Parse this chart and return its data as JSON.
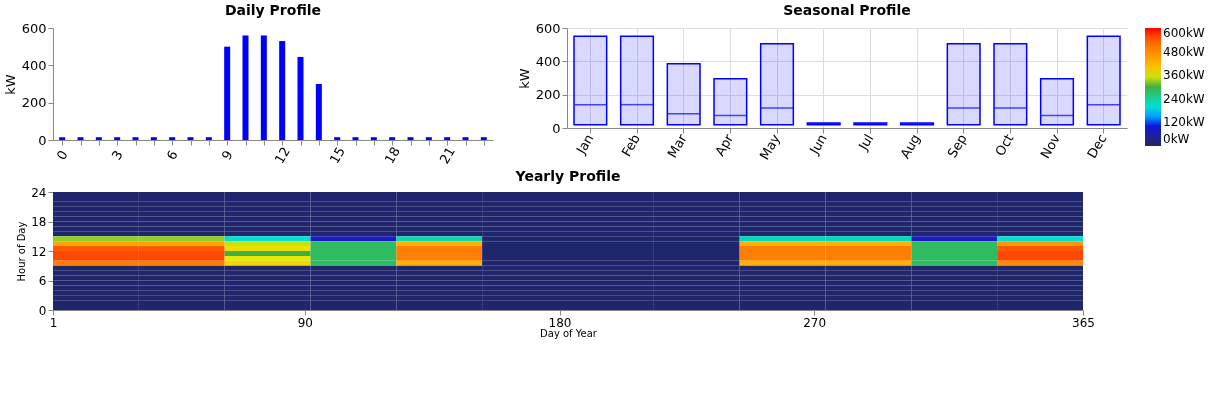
{
  "chart_data": [
    {
      "type": "bar",
      "title": "Daily Profile",
      "ylabel": "kW",
      "color": "#0000ff",
      "x": [
        0,
        1,
        2,
        3,
        4,
        5,
        6,
        7,
        8,
        9,
        10,
        11,
        12,
        13,
        14,
        15,
        16,
        17,
        18,
        19,
        20,
        21,
        22,
        23
      ],
      "values": [
        15,
        15,
        15,
        15,
        15,
        15,
        15,
        15,
        15,
        500,
        560,
        560,
        530,
        445,
        300,
        15,
        15,
        15,
        15,
        15,
        15,
        15,
        15,
        15
      ],
      "xlim": [
        -0.5,
        23.5
      ],
      "xticks": [
        0,
        {
          "value": 1,
          "label": null
        },
        {
          "value": 2,
          "label": null
        },
        3,
        {
          "value": 4,
          "label": null
        },
        {
          "value": 5,
          "label": null
        },
        6,
        {
          "value": 7,
          "label": null
        },
        {
          "value": 8,
          "label": null
        },
        9,
        {
          "value": 10,
          "label": null
        },
        {
          "value": 11,
          "label": null
        },
        12,
        {
          "value": 13,
          "label": null
        },
        {
          "value": 14,
          "label": null
        },
        15,
        {
          "value": 16,
          "label": null
        },
        {
          "value": 17,
          "label": null
        },
        18,
        {
          "value": 19,
          "label": null
        },
        {
          "value": 20,
          "label": null
        },
        21,
        {
          "value": 22,
          "label": null
        },
        {
          "value": 23,
          "label": null
        }
      ],
      "ylim": [
        0,
        600
      ],
      "yticks": [
        0,
        200,
        400,
        600
      ],
      "grid": false
    },
    {
      "type": "box",
      "title": "Seasonal Profile",
      "ylabel": "kW",
      "categories": [
        "Jan",
        "Feb",
        "Mar",
        "Apr",
        "May",
        "Jun",
        "Jul",
        "Aug",
        "Sep",
        "Oct",
        "Nov",
        "Dec"
      ],
      "series": [
        {
          "color": "#0000ff",
          "boxes": [
            {
              "low": 20,
              "q1": 20,
              "median": 140,
              "q3": 550,
              "high": 550
            },
            {
              "low": 20,
              "q1": 20,
              "median": 140,
              "q3": 550,
              "high": 550
            },
            {
              "low": 20,
              "q1": 20,
              "median": 85,
              "q3": 385,
              "high": 385
            },
            {
              "low": 20,
              "q1": 20,
              "median": 75,
              "q3": 295,
              "high": 295
            },
            {
              "low": 20,
              "q1": 20,
              "median": 120,
              "q3": 505,
              "high": 505
            },
            {
              "low": 20,
              "q1": 20,
              "median": 25,
              "q3": 30,
              "high": 30
            },
            {
              "low": 20,
              "q1": 20,
              "median": 25,
              "q3": 30,
              "high": 30
            },
            {
              "low": 20,
              "q1": 20,
              "median": 25,
              "q3": 30,
              "high": 30
            },
            {
              "low": 20,
              "q1": 20,
              "median": 120,
              "q3": 505,
              "high": 505
            },
            {
              "low": 20,
              "q1": 20,
              "median": 120,
              "q3": 505,
              "high": 505
            },
            {
              "low": 20,
              "q1": 20,
              "median": 75,
              "q3": 295,
              "high": 295
            },
            {
              "low": 20,
              "q1": 20,
              "median": 140,
              "q3": 550,
              "high": 550
            }
          ]
        }
      ],
      "ylim": [
        0,
        600
      ],
      "yticks": [
        0,
        200,
        400,
        600
      ],
      "grid": true
    },
    {
      "type": "heatmap",
      "title": "Yearly Profile",
      "xlabel": "Day of Year",
      "ylabel": "Hour of Day",
      "x": [
        16.2,
        46.5,
        76.8,
        107.2,
        137.5,
        167.8,
        198.2,
        228.5,
        258.8,
        289.2,
        319.5,
        349.8
      ],
      "xlim": [
        1,
        365
      ],
      "xticks": [
        1,
        90,
        180,
        270,
        365
      ],
      "ylim": [
        0,
        24
      ],
      "yticks": [
        0,
        6,
        12,
        18,
        24
      ],
      "cells": [
        [
          15,
          15,
          15,
          15,
          15,
          15,
          15,
          15,
          15,
          15,
          15,
          15
        ],
        [
          15,
          15,
          15,
          15,
          15,
          15,
          15,
          15,
          15,
          15,
          15,
          15
        ],
        [
          15,
          15,
          15,
          15,
          15,
          15,
          15,
          15,
          15,
          15,
          15,
          15
        ],
        [
          15,
          15,
          15,
          15,
          15,
          15,
          15,
          15,
          15,
          15,
          15,
          15
        ],
        [
          15,
          15,
          15,
          15,
          15,
          15,
          15,
          15,
          15,
          15,
          15,
          15
        ],
        [
          15,
          15,
          15,
          15,
          15,
          15,
          15,
          15,
          15,
          15,
          15,
          15
        ],
        [
          15,
          15,
          15,
          15,
          15,
          15,
          15,
          15,
          15,
          15,
          15,
          15
        ],
        [
          15,
          15,
          15,
          15,
          15,
          15,
          15,
          15,
          15,
          15,
          15,
          15
        ],
        [
          15,
          15,
          15,
          15,
          15,
          15,
          15,
          15,
          15,
          15,
          15,
          15
        ],
        [
          330,
          330,
          200,
          80,
          230,
          15,
          15,
          15,
          220,
          220,
          80,
          200
        ],
        [
          440,
          440,
          350,
          280,
          420,
          15,
          15,
          15,
          420,
          420,
          280,
          460
        ],
        [
          540,
          540,
          370,
          280,
          500,
          15,
          15,
          15,
          500,
          500,
          280,
          540
        ],
        [
          560,
          560,
          300,
          280,
          500,
          15,
          15,
          15,
          500,
          500,
          280,
          560
        ],
        [
          560,
          560,
          360,
          280,
          500,
          15,
          15,
          15,
          500,
          500,
          280,
          560
        ],
        [
          500,
          500,
          380,
          280,
          420,
          15,
          15,
          15,
          420,
          420,
          280,
          480
        ],
        [
          15,
          15,
          15,
          15,
          15,
          15,
          15,
          15,
          15,
          15,
          15,
          15
        ],
        [
          15,
          15,
          15,
          15,
          15,
          15,
          15,
          15,
          15,
          15,
          15,
          15
        ],
        [
          15,
          15,
          15,
          15,
          15,
          15,
          15,
          15,
          15,
          15,
          15,
          15
        ],
        [
          15,
          15,
          15,
          15,
          15,
          15,
          15,
          15,
          15,
          15,
          15,
          15
        ],
        [
          15,
          15,
          15,
          15,
          15,
          15,
          15,
          15,
          15,
          15,
          15,
          15
        ],
        [
          15,
          15,
          15,
          15,
          15,
          15,
          15,
          15,
          15,
          15,
          15,
          15
        ],
        [
          15,
          15,
          15,
          15,
          15,
          15,
          15,
          15,
          15,
          15,
          15,
          15
        ],
        [
          15,
          15,
          15,
          15,
          15,
          15,
          15,
          15,
          15,
          15,
          15,
          15
        ],
        [
          15,
          15,
          15,
          15,
          15,
          15,
          15,
          15,
          15,
          15,
          15,
          15
        ]
      ],
      "clim": [
        0,
        600
      ],
      "cticks": [
        {
          "value": 0,
          "label": "0kW"
        },
        {
          "value": 120,
          "label": "120kW"
        },
        {
          "value": 240,
          "label": "240kW"
        },
        {
          "value": 360,
          "label": "360kW"
        },
        {
          "value": 480,
          "label": "480kW"
        },
        {
          "value": 600,
          "label": "600kW"
        }
      ]
    }
  ]
}
